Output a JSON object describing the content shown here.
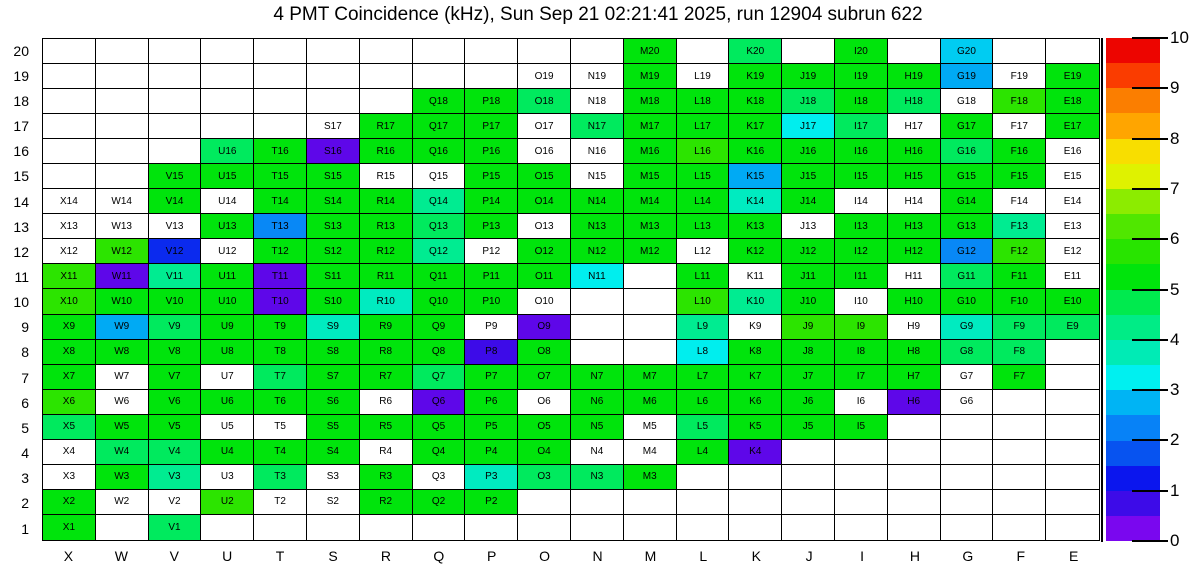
{
  "title": "4 PMT Coincidence (kHz), Sun Sep 21 02:21:41 2025, run 12904 subrun 622",
  "chart_data": {
    "type": "heatmap",
    "x_categories": [
      "X",
      "W",
      "V",
      "U",
      "T",
      "S",
      "R",
      "Q",
      "P",
      "O",
      "N",
      "M",
      "L",
      "K",
      "J",
      "I",
      "H",
      "G",
      "F",
      "E"
    ],
    "y_categories": [
      20,
      19,
      18,
      17,
      16,
      15,
      14,
      13,
      12,
      11,
      10,
      9,
      8,
      7,
      6,
      5,
      4,
      3,
      2,
      1
    ],
    "cell_label_format": "column letter + row number (e.g. X14); cells coded '.' are absent and unlabeled",
    "palette": {
      ".": "#FFFFFF",
      "w": "#FFFFFF",
      "g": "#00E40C",
      "yg": "#2CE400",
      "sg": "#00EA5E",
      "mi": "#00EC91",
      "tq": "#00EBC0",
      "cy": "#00EEEE",
      "cb": "#00CCF2",
      "lb": "#00AAF4",
      "db": "#0888F6",
      "bl": "#0B2AEE",
      "bv": "#3D0BE8",
      "vi": "#5E07E9"
    },
    "approx_values_kHz": {
      "w": 0,
      "g": 5.3,
      "yg": 5.9,
      "sg": 4.8,
      "mi": 4.3,
      "tq": 3.8,
      "cy": 3.3,
      "cb": 3.0,
      "lb": 2.8,
      "db": 2.3,
      "bl": 1.4,
      "bv": 0.8,
      "vi": 0.3
    },
    "cells": [
      [
        ".",
        ".",
        ".",
        ".",
        ".",
        ".",
        ".",
        ".",
        ".",
        ".",
        ".",
        "g",
        ".",
        "sg",
        ".",
        "g",
        ".",
        "cb",
        ".",
        "."
      ],
      [
        ".",
        ".",
        ".",
        ".",
        ".",
        ".",
        ".",
        ".",
        ".",
        "w",
        "w",
        "g",
        "w",
        "g",
        "g",
        "g",
        "g",
        "lb",
        "w",
        "g"
      ],
      [
        ".",
        ".",
        ".",
        ".",
        ".",
        ".",
        ".",
        "g",
        "g",
        "sg",
        "w",
        "g",
        "g",
        "g",
        "sg",
        "g",
        "sg",
        "w",
        "yg",
        "g"
      ],
      [
        ".",
        ".",
        ".",
        ".",
        ".",
        "w",
        "g",
        "g",
        "g",
        "w",
        "sg",
        "g",
        "g",
        "g",
        "cy",
        "sg",
        "w",
        "g",
        "w",
        "g"
      ],
      [
        ".",
        ".",
        ".",
        "sg",
        "g",
        "vi",
        "g",
        "g",
        "g",
        "w",
        "w",
        "g",
        "yg",
        "g",
        "g",
        "g",
        "g",
        "sg",
        "g",
        "w"
      ],
      [
        ".",
        ".",
        "g",
        "g",
        "g",
        "g",
        "w",
        "w",
        "g",
        "g",
        "w",
        "g",
        "g",
        "lb",
        "g",
        "g",
        "g",
        "g",
        "g",
        "w"
      ],
      [
        "w",
        "w",
        "g",
        "w",
        "g",
        "g",
        "g",
        "mi",
        "g",
        "g",
        "g",
        "g",
        "g",
        "tq",
        "g",
        "w",
        "w",
        "g",
        "w",
        "w"
      ],
      [
        "w",
        "w",
        "w",
        "g",
        "db",
        "g",
        "g",
        "sg",
        "g",
        "w",
        "g",
        "g",
        "g",
        "g",
        "w",
        "g",
        "g",
        "g",
        "mi",
        "w"
      ],
      [
        "w",
        "yg",
        "bl",
        "w",
        "g",
        "g",
        "g",
        "mi",
        "w",
        "g",
        "g",
        "g",
        "w",
        "g",
        "g",
        "g",
        "g",
        "db",
        "yg",
        "w"
      ],
      [
        "yg",
        "vi",
        "mi",
        "g",
        "vi",
        "g",
        "g",
        "g",
        "g",
        "g",
        "cy",
        ".",
        "g",
        "w",
        "g",
        "g",
        "w",
        "sg",
        "g",
        "w"
      ],
      [
        "yg",
        "g",
        "g",
        "g",
        "vi",
        "g",
        "tq",
        "g",
        "g",
        "w",
        ".",
        ".",
        "yg",
        "mi",
        "g",
        "w",
        "g",
        "g",
        "g",
        "g"
      ],
      [
        "g",
        "lb",
        "sg",
        "g",
        "g",
        "tq",
        "g",
        "g",
        "w",
        "vi",
        ".",
        ".",
        "mi",
        "w",
        "yg",
        "yg",
        "w",
        "tq",
        "sg",
        "sg"
      ],
      [
        "g",
        "g",
        "g",
        "g",
        "g",
        "g",
        "g",
        "g",
        "bv",
        "g",
        ".",
        ".",
        "cy",
        "g",
        "g",
        "g",
        "g",
        "sg",
        "sg",
        "."
      ],
      [
        "g",
        "w",
        "g",
        "w",
        "sg",
        "g",
        "g",
        "sg",
        "g",
        "g",
        "g",
        "g",
        "g",
        "g",
        "g",
        "g",
        "g",
        "w",
        "g",
        "."
      ],
      [
        "yg",
        "w",
        "g",
        "g",
        "g",
        "g",
        "w",
        "vi",
        "g",
        "w",
        "g",
        "g",
        "g",
        "g",
        "g",
        "w",
        "vi",
        "w",
        ".",
        "."
      ],
      [
        "sg",
        "g",
        "g",
        "w",
        "w",
        "g",
        "g",
        "g",
        "g",
        "g",
        "g",
        "w",
        "sg",
        "g",
        "g",
        "g",
        ".",
        ".",
        ".",
        "."
      ],
      [
        "w",
        "sg",
        "sg",
        "g",
        "g",
        "g",
        "w",
        "g",
        "g",
        "g",
        "w",
        "w",
        "g",
        "vi",
        ".",
        ".",
        ".",
        ".",
        ".",
        "."
      ],
      [
        "w",
        "g",
        "mi",
        "w",
        "sg",
        "w",
        "g",
        "w",
        "tq",
        "sg",
        "sg",
        "g",
        ".",
        ".",
        ".",
        ".",
        ".",
        ".",
        ".",
        "."
      ],
      [
        "g",
        "w",
        "w",
        "yg",
        "w",
        "w",
        "g",
        "g",
        "g",
        ".",
        ".",
        ".",
        ".",
        ".",
        ".",
        ".",
        ".",
        ".",
        ".",
        "."
      ],
      [
        "g",
        ".",
        "sg",
        ".",
        ".",
        ".",
        ".",
        ".",
        ".",
        ".",
        ".",
        ".",
        ".",
        ".",
        ".",
        ".",
        ".",
        ".",
        ".",
        "."
      ]
    ],
    "colorbar": {
      "min": 0,
      "max": 10,
      "tick_values": [
        10,
        9,
        8,
        7,
        6,
        5,
        4,
        3,
        2,
        1,
        0
      ],
      "band_colors_top_to_bottom": [
        "#ED0500",
        "#FA3C00",
        "#FB7E00",
        "#FFA500",
        "#F8DE00",
        "#DFF200",
        "#8CEC00",
        "#50E700",
        "#28E400",
        "#00E40C",
        "#00EA4E",
        "#00EC86",
        "#00EBB5",
        "#00F0F0",
        "#00B4F4",
        "#0782F7",
        "#0753F0",
        "#0B16EE",
        "#3D0BE8",
        "#7A07EF"
      ]
    }
  }
}
